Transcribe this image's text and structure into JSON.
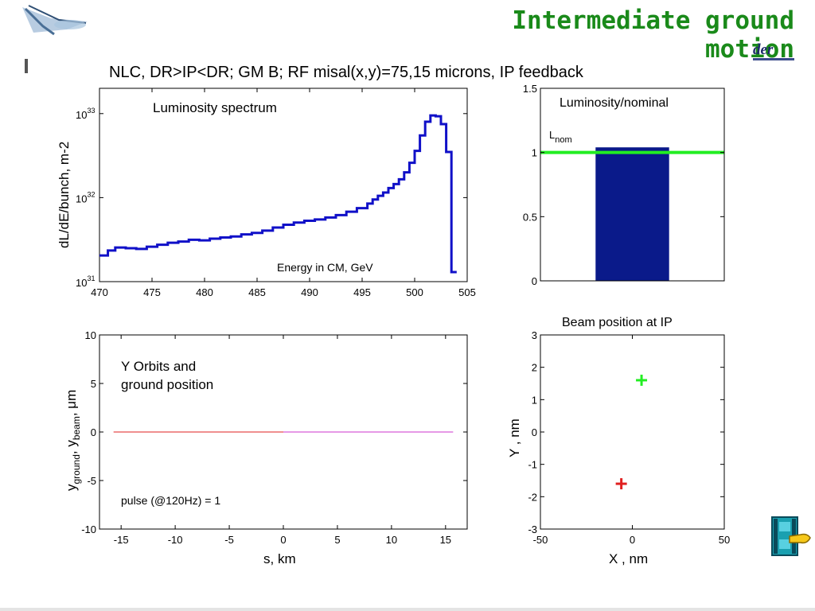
{
  "slide": {
    "title": "Intermediate ground motion",
    "subtitle_fragment": "der"
  },
  "figure_title": "NLC, DR>IP<DR; GM B; RF misal(x,y)=75,15 microns, IP feedback",
  "icons": {
    "logo": "collider-logo-icon",
    "nav": "film-strip-hand-icon"
  },
  "colors": {
    "title_green": "#1a8a1a",
    "spectrum_line": "#1010c8",
    "bar_fill": "#0a1a8a",
    "nominal_line": "#22ee22",
    "ground_line": "#e02020",
    "beam_line": "#cc33cc"
  },
  "chart_data": [
    {
      "type": "line",
      "title": "Luminosity spectrum",
      "xlabel": "Energy in CM, GeV",
      "ylabel": "dL/dE/bunch, m-2",
      "xlim": [
        470,
        505
      ],
      "ylim": [
        1e+31,
        2e+33
      ],
      "yscale": "log",
      "x_ticks": [
        "470",
        "475",
        "480",
        "485",
        "490",
        "495",
        "500",
        "505"
      ],
      "y_ticks": [
        {
          "base": "10",
          "exp": "31"
        },
        {
          "base": "10",
          "exp": "32"
        },
        {
          "base": "10",
          "exp": "33"
        }
      ],
      "series": [
        {
          "x": [
            470,
            470.8,
            471.5,
            472.5,
            473.5,
            474.5,
            475.5,
            476.5,
            477.5,
            478.5,
            479.5,
            480.5,
            481.5,
            482.5,
            483.5,
            484.5,
            485.5,
            486.5,
            487.5,
            488.5,
            489.5,
            490.5,
            491.5,
            492.5,
            493.5,
            494.5,
            495.5,
            496,
            496.5,
            497,
            497.5,
            498,
            498.5,
            499,
            499.5,
            500,
            500.5,
            501,
            501.5,
            502,
            502.5,
            503,
            503.5,
            504
          ],
          "values": [
            2.05e+31,
            2.35e+31,
            2.55e+31,
            2.5e+31,
            2.45e+31,
            2.6e+31,
            2.75e+31,
            2.9e+31,
            3e+31,
            3.15e+31,
            3.1e+31,
            3.25e+31,
            3.35e+31,
            3.45e+31,
            3.65e+31,
            3.8e+31,
            4.05e+31,
            4.4e+31,
            4.75e+31,
            5.05e+31,
            5.3e+31,
            5.5e+31,
            5.8e+31,
            6.2e+31,
            6.8e+31,
            7.5e+31,
            8.5e+31,
            9.5e+31,
            1.05e+32,
            1.15e+32,
            1.3e+32,
            1.45e+32,
            1.65e+32,
            2e+32,
            2.6e+32,
            3.6e+32,
            5.5e+32,
            8e+32,
            9.5e+32,
            9.3e+32,
            7.5e+32,
            3.5e+32,
            1.3e+31,
            1.3e+31
          ]
        }
      ]
    },
    {
      "type": "bar",
      "title": "Luminosity/nominal",
      "annotation": {
        "text": "L",
        "sub": "nom"
      },
      "values": [
        1.04
      ],
      "nominal": 1.0,
      "xlim": [
        0,
        1
      ],
      "ylim": [
        0,
        1.5
      ],
      "y_ticks": [
        "0",
        "0.5",
        "1",
        "1.5"
      ]
    },
    {
      "type": "line",
      "title": "Y Orbits and",
      "title2": "ground position",
      "annotation": "pulse (@120Hz)  = 1",
      "xlabel": "s, km",
      "ylabel": {
        "main": "y",
        "sub1": "ground",
        "sep": ", y",
        "sub2": "beam",
        "tail": ", μm"
      },
      "xlim": [
        -17,
        17
      ],
      "ylim": [
        -10,
        10
      ],
      "x_ticks": [
        "-15",
        "-10",
        "-5",
        "0",
        "5",
        "10",
        "15"
      ],
      "y_ticks": [
        "-10",
        "-5",
        "0",
        "5",
        "10"
      ],
      "series": [
        {
          "x": [
            -15.7,
            0
          ],
          "values": [
            0,
            0
          ]
        },
        {
          "x": [
            0,
            15.7
          ],
          "values": [
            0,
            0
          ]
        }
      ]
    },
    {
      "type": "scatter",
      "title": "Beam position at IP",
      "xlabel": "X , nm",
      "ylabel": "Y , nm",
      "xlim": [
        -50,
        50
      ],
      "ylim": [
        -3,
        3
      ],
      "x_ticks": [
        "-50",
        "0",
        "50"
      ],
      "y_ticks": [
        "-3",
        "-2",
        "-1",
        "0",
        "1",
        "2",
        "3"
      ],
      "series": [
        {
          "x": [
            5
          ],
          "values": [
            1.6
          ]
        },
        {
          "x": [
            -6
          ],
          "values": [
            -1.6
          ]
        }
      ]
    }
  ]
}
